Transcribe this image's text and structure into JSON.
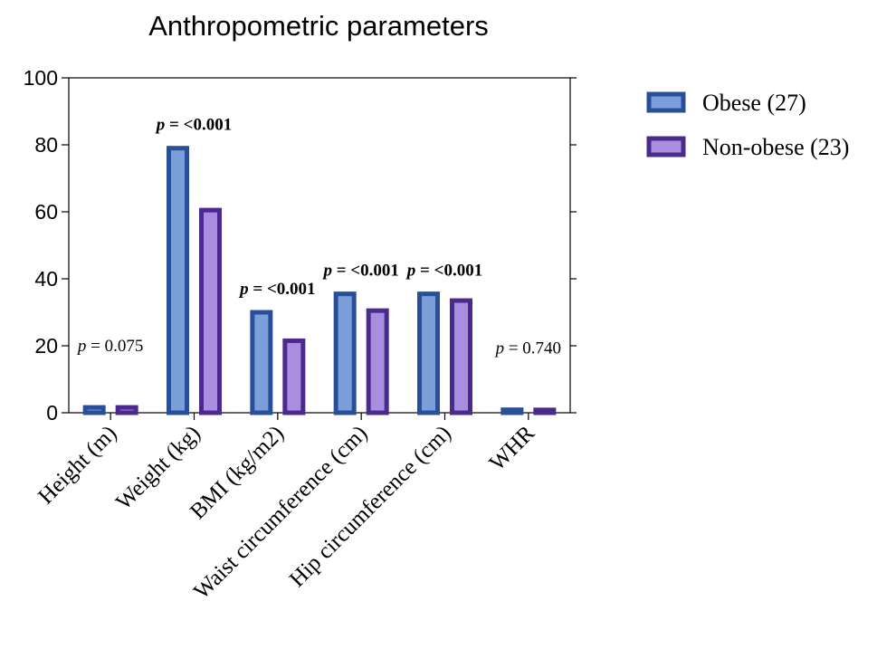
{
  "chart_data": {
    "type": "bar",
    "title": "Anthropometric parameters",
    "xlabel": "",
    "ylabel": "",
    "ylim": [
      0,
      100
    ],
    "yticks": [
      "0",
      "20",
      "40",
      "60",
      "80",
      "100"
    ],
    "grid": false,
    "legend_position": "right",
    "categories": [
      "Height (m)",
      "Weight (kg)",
      "BMI (kg/m2)",
      "Waist circumference (cm)",
      "Hip circumference (cm)",
      "WHR"
    ],
    "series": [
      {
        "name": "Obese (27)",
        "values": [
          1.6,
          79,
          30,
          35.5,
          35.5,
          0.9
        ],
        "fill": "#7b9fd9",
        "stroke": "#2a4f9a"
      },
      {
        "name": "Non-obese (23)",
        "values": [
          1.6,
          60.5,
          21.5,
          30.5,
          33.5,
          0.85
        ],
        "fill": "#a98ee0",
        "stroke": "#4a2a8c"
      }
    ],
    "annotations": [
      {
        "category_index": 0,
        "prefix": "p",
        "text": " = 0.075",
        "bold": false
      },
      {
        "category_index": 1,
        "prefix": "p",
        "text": " = <0.001",
        "bold": true
      },
      {
        "category_index": 2,
        "prefix": "p",
        "text": " = <0.001",
        "bold": true
      },
      {
        "category_index": 3,
        "prefix": "p",
        "text": " = <0.001",
        "bold": true
      },
      {
        "category_index": 4,
        "prefix": "p",
        "text": " = <0.001",
        "bold": true
      },
      {
        "category_index": 5,
        "prefix": "p",
        "text": " = 0.740",
        "bold": false
      }
    ]
  }
}
